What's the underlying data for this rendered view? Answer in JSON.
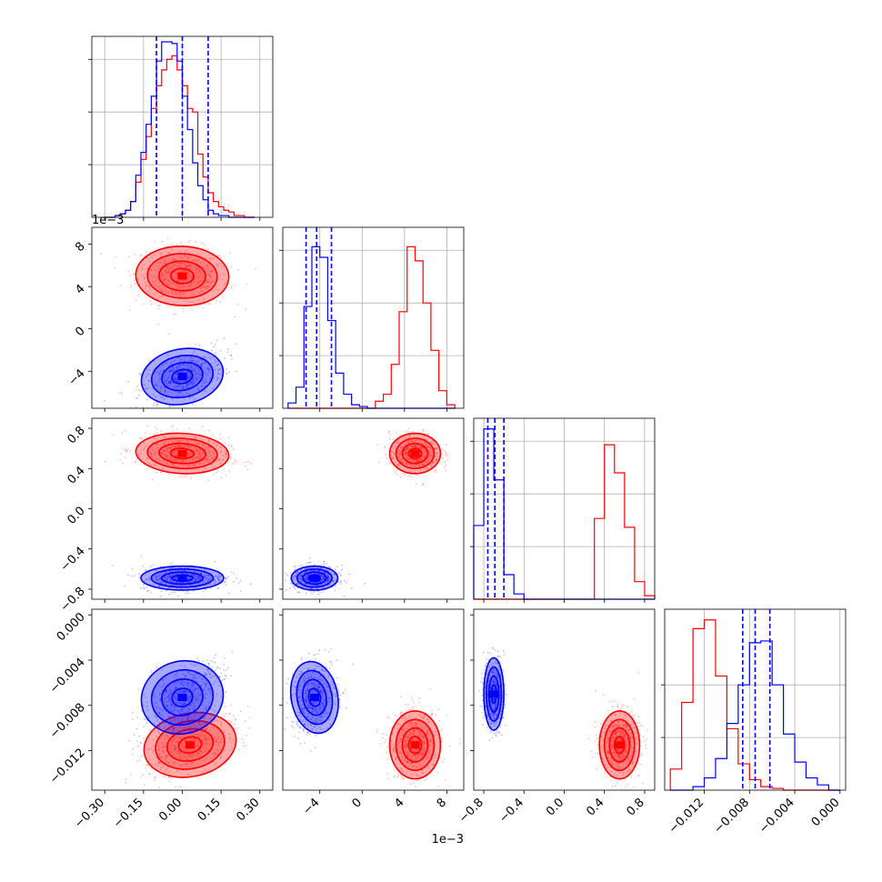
{
  "chart_data": {
    "type": "corner",
    "grid": true,
    "series": [
      {
        "color": "#ff0000"
      },
      {
        "color": "#0000ff"
      }
    ],
    "axes": [
      {
        "ticks": [
          -0.3,
          -0.15,
          0.0,
          0.15,
          0.3
        ],
        "tick_labels": [
          "−0.30",
          "−0.15",
          "0.00",
          "0.15",
          "0.30"
        ],
        "range": [
          -0.35,
          0.35
        ]
      },
      {
        "ticks": [
          -4,
          0,
          4,
          8
        ],
        "tick_labels": [
          "−4",
          "0",
          "4",
          "8"
        ],
        "offset_text": "1e−3",
        "range": [
          -7.5,
          9.6
        ]
      },
      {
        "ticks": [
          -0.8,
          -0.4,
          0.0,
          0.4,
          0.8
        ],
        "tick_labels": [
          "−0.8",
          "−0.4",
          "0.0",
          "0.4",
          "0.8"
        ],
        "range": [
          -0.9,
          0.9
        ]
      },
      {
        "ticks": [
          -0.012,
          -0.008,
          -0.004,
          0.0
        ],
        "tick_labels": [
          "−0.012",
          "−0.008",
          "−0.004",
          "0.000"
        ],
        "range": [
          -0.0155,
          0.0005
        ]
      }
    ],
    "marginals": [
      {
        "edges": [
          -0.3,
          -0.28,
          -0.26,
          -0.24,
          -0.22,
          -0.2,
          -0.18,
          -0.16,
          -0.14,
          -0.12,
          -0.1,
          -0.08,
          -0.06,
          -0.04,
          -0.02,
          0.0,
          0.02,
          0.04,
          0.06,
          0.08,
          0.1,
          0.12,
          0.14,
          0.16,
          0.18,
          0.2,
          0.22,
          0.24,
          0.26,
          0.28
        ],
        "counts": [
          [
            0.0,
            0.0,
            0.01,
            0.02,
            0.04,
            0.09,
            0.2,
            0.33,
            0.46,
            0.62,
            0.75,
            0.84,
            0.9,
            0.92,
            0.84,
            0.75,
            0.62,
            0.6,
            0.36,
            0.23,
            0.14,
            0.09,
            0.06,
            0.04,
            0.03,
            0.01,
            0.01,
            0.0,
            0.0
          ],
          [
            0.0,
            0.0,
            0.01,
            0.02,
            0.04,
            0.09,
            0.24,
            0.37,
            0.53,
            0.69,
            0.89,
            1.0,
            1.0,
            0.99,
            0.89,
            0.69,
            0.5,
            0.31,
            0.18,
            0.1,
            0.04,
            0.02,
            0.01,
            0.01,
            0.0,
            0.0,
            0.0,
            0.0,
            0.0
          ]
        ],
        "quantiles": [
          -0.1,
          0.0,
          0.1
        ],
        "ylim": [
          0,
          1.0
        ],
        "yticks": [
          0.3,
          0.6,
          0.9
        ]
      },
      {
        "edges": [
          -7.0,
          -6.25,
          -5.5,
          -4.75,
          -4.0,
          -3.25,
          -2.5,
          -1.75,
          -1.0,
          -0.25,
          0.5,
          1.25,
          2.0,
          2.75,
          3.5,
          4.25,
          5.0,
          5.75,
          6.5,
          7.25,
          8.0,
          8.75
        ],
        "counts": [
          [
            0.0,
            0.0,
            0.0,
            0.0,
            0.0,
            0.0,
            0.0,
            0.0,
            0.0,
            0.0,
            0.0,
            0.04,
            0.08,
            0.25,
            0.55,
            0.92,
            0.84,
            0.6,
            0.33,
            0.1,
            0.02
          ],
          [
            0.03,
            0.12,
            0.58,
            0.92,
            0.86,
            0.5,
            0.2,
            0.08,
            0.02,
            0.01,
            0.0,
            0.0,
            0.0,
            0.0,
            0.0,
            0.0,
            0.0,
            0.0,
            0.0,
            0.0,
            0.0
          ]
        ],
        "quantiles": [
          -5.3,
          -4.3,
          -2.9
        ],
        "ylim": [
          0,
          1.0
        ],
        "yticks": [
          0.3,
          0.6,
          0.9
        ]
      },
      {
        "edges": [
          -0.9,
          -0.8,
          -0.7,
          -0.6,
          -0.5,
          -0.4,
          -0.3,
          -0.2,
          -0.1,
          0.0,
          0.1,
          0.2,
          0.3,
          0.4,
          0.5,
          0.6,
          0.7,
          0.8,
          0.9
        ],
        "counts": [
          [
            0.0,
            0.0,
            0.0,
            0.0,
            0.0,
            0.0,
            0.0,
            0.0,
            0.0,
            0.0,
            0.0,
            0.0,
            0.46,
            0.88,
            0.72,
            0.41,
            0.1,
            0.02
          ],
          [
            0.42,
            0.97,
            0.68,
            0.14,
            0.03,
            0.0,
            0.0,
            0.0,
            0.0,
            0.0,
            0.0,
            0.0,
            0.0,
            0.0,
            0.0,
            0.0,
            0.0,
            0.0
          ]
        ],
        "quantiles": [
          -0.76,
          -0.69,
          -0.6
        ],
        "ylim": [
          0,
          1.0
        ],
        "yticks": [
          0.3,
          0.6,
          0.9
        ]
      },
      {
        "edges": [
          -0.015,
          -0.014,
          -0.013,
          -0.012,
          -0.011,
          -0.01,
          -0.009,
          -0.008,
          -0.007,
          -0.006,
          -0.005,
          -0.004,
          -0.003,
          -0.002,
          -0.001,
          0.0
        ],
        "counts": [
          [
            0.12,
            0.5,
            0.92,
            0.97,
            0.65,
            0.35,
            0.15,
            0.06,
            0.02,
            0.01,
            0.0,
            0.0,
            0.0,
            0.0,
            0.0
          ],
          [
            0.0,
            0.0,
            0.02,
            0.07,
            0.18,
            0.38,
            0.6,
            0.84,
            0.85,
            0.6,
            0.32,
            0.16,
            0.07,
            0.03,
            0.0
          ]
        ],
        "quantiles": [
          -0.0086,
          -0.0075,
          -0.0062
        ],
        "ylim": [
          0,
          1.0
        ],
        "yticks": [
          0.3,
          0.6
        ]
      }
    ],
    "joint": {
      "cells": [
        {
          "row": 1,
          "col": 0,
          "means": [
            [
              0.0,
              5.0
            ],
            [
              0.0,
              -4.5
            ]
          ],
          "sds": [
            [
              0.09,
              1.4
            ],
            [
              0.08,
              1.3
            ]
          ],
          "rho": [
            -0.1,
            0.5
          ]
        },
        {
          "row": 2,
          "col": 0,
          "means": [
            [
              0.0,
              0.55
            ],
            [
              0.0,
              -0.69
            ]
          ],
          "sds": [
            [
              0.09,
              0.1
            ],
            [
              0.08,
              0.06
            ]
          ],
          "rho": [
            -0.2,
            0.0
          ]
        },
        {
          "row": 2,
          "col": 1,
          "means": [
            [
              5.0,
              0.55
            ],
            [
              -4.5,
              -0.69
            ]
          ],
          "sds": [
            [
              1.2,
              0.1
            ],
            [
              1.1,
              0.06
            ]
          ],
          "rho": [
            0.0,
            0.0
          ]
        },
        {
          "row": 3,
          "col": 0,
          "means": [
            [
              0.03,
              -0.0115
            ],
            [
              0.0,
              -0.0073
            ]
          ],
          "sds": [
            [
              0.09,
              0.0014
            ],
            [
              0.08,
              0.0016
            ]
          ],
          "rho": [
            0.5,
            0.6
          ]
        },
        {
          "row": 3,
          "col": 1,
          "means": [
            [
              5.0,
              -0.0115
            ],
            [
              -4.5,
              -0.0073
            ]
          ],
          "sds": [
            [
              1.2,
              0.0015
            ],
            [
              1.1,
              0.0016
            ]
          ],
          "rho": [
            0.0,
            0.2
          ]
        },
        {
          "row": 3,
          "col": 2,
          "means": [
            [
              0.55,
              -0.0115
            ],
            [
              -0.7,
              -0.007
            ]
          ],
          "sds": [
            [
              0.1,
              0.0015
            ],
            [
              0.05,
              0.0016
            ]
          ],
          "rho": [
            0.0,
            0.0
          ]
        }
      ],
      "contour_sigmas": [
        0.5,
        1.0,
        1.5,
        2.0
      ]
    }
  }
}
